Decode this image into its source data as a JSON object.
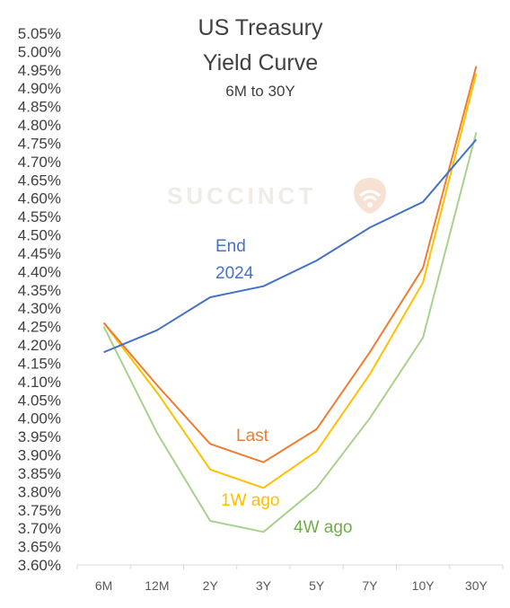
{
  "title": {
    "line1": "US Treasury",
    "line2": "Yield Curve",
    "subtitle": "6M to 30Y"
  },
  "watermark": "SUCCINCT",
  "chart_data": {
    "type": "line",
    "categories": [
      "6M",
      "12M",
      "2Y",
      "3Y",
      "5Y",
      "7Y",
      "10Y",
      "30Y"
    ],
    "ylim": [
      3.6,
      5.05
    ],
    "ytick_step": 0.05,
    "ytick_format": "percent_2dp",
    "grid": false,
    "legend": "none (inline series labels)",
    "series": [
      {
        "name": "End 2024",
        "label_lines": [
          "End",
          "2024"
        ],
        "color": "#4472c4",
        "values": [
          4.18,
          4.24,
          4.33,
          4.36,
          4.43,
          4.52,
          4.59,
          4.76
        ]
      },
      {
        "name": "Last",
        "label_lines": [
          "Last"
        ],
        "color": "#ed7d31",
        "values": [
          4.26,
          4.09,
          3.93,
          3.88,
          3.97,
          4.18,
          4.41,
          4.96
        ]
      },
      {
        "name": "1W ago",
        "label_lines": [
          "1W ago"
        ],
        "color": "#ffc000",
        "values": [
          4.26,
          4.07,
          3.86,
          3.81,
          3.91,
          4.12,
          4.37,
          4.94
        ]
      },
      {
        "name": "4W ago",
        "label_lines": [
          "4W ago"
        ],
        "color": "#a9d18e",
        "label_color": "#70ad47",
        "values": [
          4.25,
          3.96,
          3.72,
          3.69,
          3.81,
          4.0,
          4.22,
          4.78
        ]
      }
    ]
  }
}
